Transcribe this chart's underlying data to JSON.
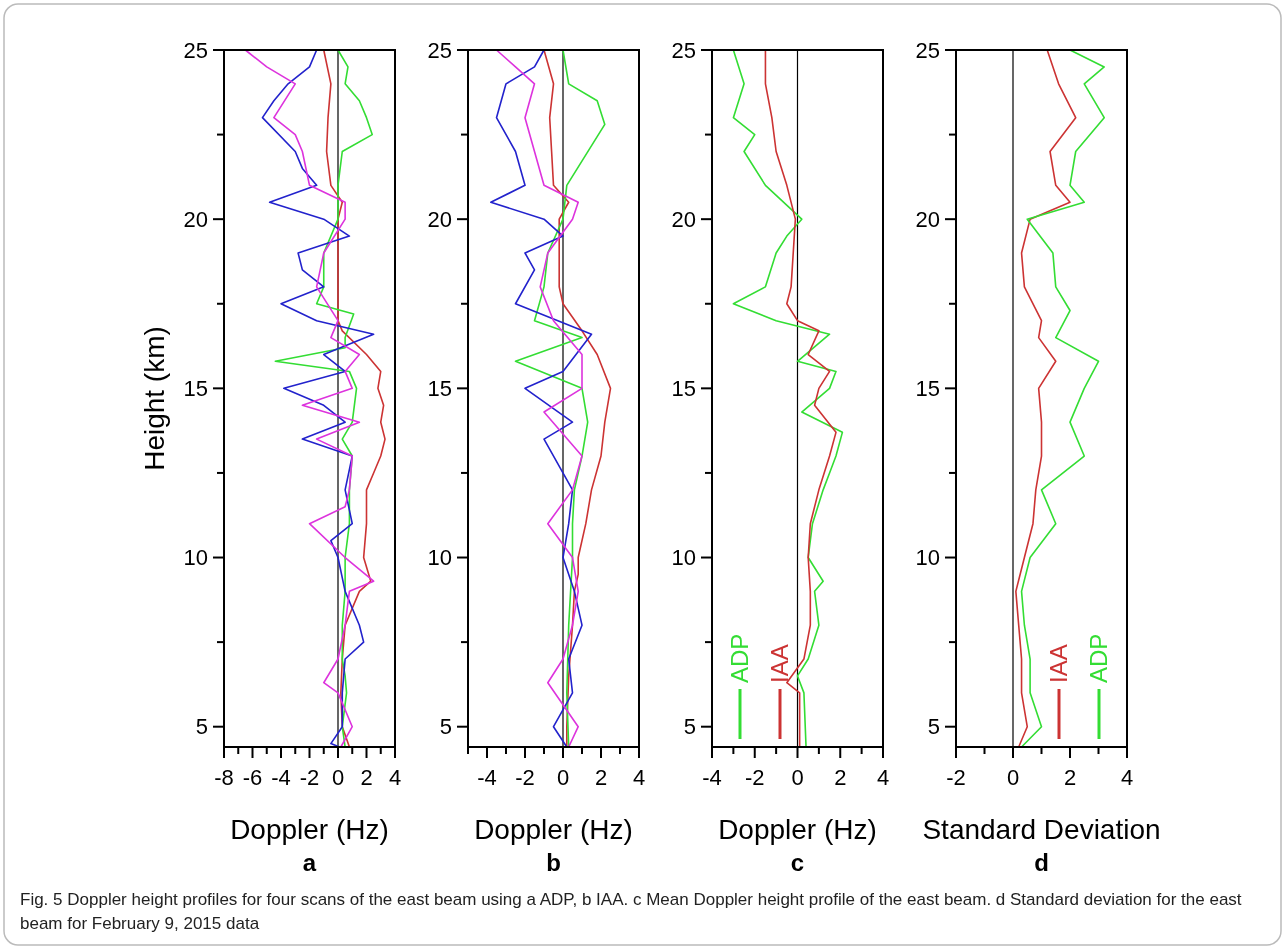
{
  "chart_data": [
    {
      "type": "line",
      "xlabel": "Doppler (Hz)",
      "ylabel": "Height (km)",
      "xlim": [
        -8,
        4
      ],
      "xticks": [
        -8,
        {
          "value": -7,
          "label": null
        },
        -6,
        {
          "value": -5,
          "label": null
        },
        -4,
        {
          "value": -3,
          "label": null
        },
        -2,
        {
          "value": -1,
          "label": null
        },
        0,
        {
          "value": 1,
          "label": null
        },
        2,
        {
          "value": 3,
          "label": null
        },
        4
      ],
      "ylim": [
        4.4,
        25
      ],
      "yticks": [
        5,
        {
          "value": 7.5,
          "label": null
        },
        10,
        {
          "value": 12.5,
          "label": null
        },
        15,
        {
          "value": 17.5,
          "label": null
        },
        20,
        {
          "value": 22.5,
          "label": null
        },
        25
      ],
      "grid": false,
      "legend": false,
      "ref_lines": [
        {
          "axis": "x",
          "value": 0,
          "color": "#000000"
        }
      ],
      "annotations": [
        "a",
        "Fig. 5  Doppler height profiles for four scans of the east beam using a ADP, b IAA. c Mean Doppler height profile of the east beam. d Standard deviation for the east beam for February 9, 2015 data"
      ],
      "series": [
        {
          "color": "#cc3333",
          "x": [
            0.8,
            0.3,
            0.2,
            0.3,
            0.5,
            1.5,
            2.3,
            1.8,
            2,
            2,
            2.5,
            3,
            3.3,
            3,
            3.2,
            2.8,
            3,
            2,
            0.3,
            0,
            0,
            0,
            0,
            0.3,
            -0.5,
            -0.8,
            -0.7,
            -0.5,
            -1
          ],
          "values": [
            4.4,
            5,
            6,
            7,
            8,
            9,
            9.3,
            10,
            11,
            12,
            12.5,
            13,
            13.5,
            14,
            14.5,
            15,
            15.5,
            16,
            16.7,
            17,
            18,
            19,
            20,
            20.5,
            21,
            22,
            23,
            24,
            25
          ]
        },
        {
          "color": "#33dd33",
          "x": [
            0.5,
            0.3,
            0.6,
            0.5,
            0.3,
            0.3,
            0.5,
            0.5,
            0.8,
            0.8,
            1,
            0.3,
            1,
            1.3,
            0.8,
            -4.4,
            0.5,
            0.5,
            1.1,
            -1.5,
            -1,
            -1,
            0,
            0,
            0.3,
            2.4,
            2,
            1.5,
            0.5,
            0.7,
            0
          ],
          "values": [
            4.4,
            5,
            6,
            6.5,
            7,
            8,
            9,
            10,
            11,
            12,
            13,
            13.5,
            14,
            15,
            15.5,
            15.8,
            16.2,
            16.5,
            17.2,
            17.5,
            18,
            19,
            20,
            21,
            22,
            22.5,
            23,
            23.5,
            24,
            24.5,
            25
          ]
        },
        {
          "color": "#2222cc",
          "x": [
            0.1,
            -0.5,
            0.3,
            0.3,
            0.5,
            1.8,
            1.5,
            0.5,
            0,
            -0.5,
            1,
            0.5,
            1,
            -2.5,
            0.5,
            -1,
            -3.8,
            0.5,
            -1,
            2.5,
            -1.5,
            -4,
            -1,
            -2.5,
            -2.8,
            0.8,
            -1,
            -4.8,
            -1.5,
            -2.5,
            -3,
            -5.3,
            -4.5,
            -3.5,
            -2,
            -1.5
          ],
          "values": [
            4.4,
            4.5,
            5,
            6,
            7,
            7.5,
            8,
            9,
            10,
            10.5,
            11,
            12,
            13,
            13.5,
            14,
            14.5,
            15,
            15.5,
            16,
            16.6,
            17,
            17.5,
            18,
            18.5,
            19,
            19.5,
            20,
            20.5,
            21,
            21.5,
            22,
            23,
            23.5,
            24,
            24.5,
            25
          ]
        },
        {
          "color": "#dd33dd",
          "x": [
            0.2,
            1,
            0,
            -1,
            0,
            0.5,
            0.8,
            2.5,
            0.5,
            -2,
            0.5,
            0.8,
            1,
            -1.5,
            1.5,
            -2.5,
            1,
            0.5,
            1.5,
            -0.5,
            0,
            -1.5,
            -1,
            0.5,
            0.5,
            -2,
            -2.5,
            -3,
            -4.5,
            -3,
            -5,
            -6.5
          ],
          "values": [
            4.4,
            5,
            6,
            6.3,
            7,
            8,
            9,
            9.3,
            10,
            11,
            11.5,
            12,
            13,
            13.5,
            14,
            14.5,
            15,
            15.5,
            16,
            16.5,
            17,
            18,
            19,
            20,
            20.5,
            21,
            22,
            22.5,
            23,
            24,
            24.5,
            25
          ]
        }
      ]
    },
    {
      "type": "line",
      "xlabel": "Doppler (Hz)",
      "xlim": [
        -5,
        4
      ],
      "xticks": [
        {
          "value": -5,
          "label": null
        },
        -4,
        {
          "value": -3,
          "label": null
        },
        -2,
        {
          "value": -1,
          "label": null
        },
        0,
        {
          "value": 1,
          "label": null
        },
        2,
        {
          "value": 3,
          "label": null
        },
        4
      ],
      "ylim": [
        4.4,
        25
      ],
      "yticks": [
        5,
        {
          "value": 7.5,
          "label": null
        },
        10,
        {
          "value": 12.5,
          "label": null
        },
        15,
        {
          "value": 17.5,
          "label": null
        },
        20,
        {
          "value": 22.5,
          "label": null
        },
        25
      ],
      "grid": false,
      "legend": false,
      "ref_lines": [
        {
          "axis": "x",
          "value": 0,
          "color": "#000000"
        }
      ],
      "annotations": [
        "b"
      ],
      "series": [
        {
          "color": "#cc3333",
          "x": [
            0.2,
            0.2,
            0.3,
            0.5,
            0.6,
            0.8,
            0.8,
            1.2,
            1.5,
            2,
            2.2,
            2.5,
            1.8,
            1,
            0,
            -0.2,
            -0.2,
            -0.2,
            0.3,
            -0.5,
            -0.6,
            -0.7,
            -0.5,
            -1
          ],
          "values": [
            4.4,
            5,
            6.5,
            8,
            9,
            9.5,
            10,
            11,
            12,
            13,
            14,
            15,
            16,
            16.7,
            17.5,
            18,
            19,
            20,
            20.5,
            21,
            22,
            23,
            24,
            25
          ]
        },
        {
          "color": "#33dd33",
          "x": [
            0.3,
            0.2,
            0.3,
            0.5,
            0.5,
            0.6,
            1,
            1.3,
            1,
            -2.5,
            1,
            -1.5,
            -1,
            -0.8,
            0,
            0.2,
            2.2,
            1.8,
            0.3,
            0
          ],
          "values": [
            4.4,
            6,
            8,
            10,
            11,
            12,
            13,
            14,
            15,
            15.8,
            16.5,
            17,
            18,
            19,
            20,
            21,
            22.8,
            23.5,
            24,
            25
          ]
        },
        {
          "color": "#2222cc",
          "x": [
            0.2,
            -0.5,
            0.5,
            0.3,
            1,
            0.6,
            0,
            0.3,
            0.5,
            -1,
            0.5,
            -2,
            0,
            1.5,
            -2.5,
            -1.5,
            -2,
            0,
            -1,
            -3.8,
            -2,
            -2.5,
            -3.5,
            -3,
            -1.5,
            -1
          ],
          "values": [
            4.4,
            5,
            6,
            7,
            8,
            9,
            10,
            11,
            12,
            13.5,
            14,
            15,
            15.5,
            16.6,
            17.5,
            18.5,
            19,
            19.5,
            20,
            20.5,
            21,
            22,
            23,
            24,
            24.5,
            25
          ]
        },
        {
          "color": "#dd33dd",
          "x": [
            0.3,
            0.8,
            -0.8,
            0,
            0.5,
            0.8,
            0.5,
            -0.8,
            0.5,
            1,
            -1,
            1,
            1,
            -0.5,
            -1.2,
            -0.8,
            0.5,
            0.8,
            -1,
            -1.5,
            -2,
            -1.5,
            -2.5,
            -3.5
          ],
          "values": [
            4.4,
            5,
            6.3,
            7,
            8,
            9,
            10,
            11,
            12,
            13,
            14.3,
            15,
            16,
            17,
            18,
            19,
            20,
            20.5,
            21,
            22,
            23,
            24,
            24.5,
            25
          ]
        }
      ]
    },
    {
      "type": "line",
      "xlabel": "Doppler (Hz)",
      "xlim": [
        -4,
        4
      ],
      "xticks": [
        -4,
        {
          "value": -3,
          "label": null
        },
        -2,
        {
          "value": -1,
          "label": null
        },
        0,
        {
          "value": 1,
          "label": null
        },
        2,
        {
          "value": 3,
          "label": null
        },
        4
      ],
      "ylim": [
        4.4,
        25
      ],
      "yticks": [
        5,
        {
          "value": 7.5,
          "label": null
        },
        10,
        {
          "value": 12.5,
          "label": null
        },
        15,
        {
          "value": 17.5,
          "label": null
        },
        20,
        {
          "value": 22.5,
          "label": null
        },
        25
      ],
      "grid": false,
      "legend": "bottom left",
      "ref_lines": [
        {
          "axis": "x",
          "value": 0,
          "color": "#000000"
        }
      ],
      "annotations": [
        "c"
      ],
      "series": [
        {
          "name": "ADP",
          "color": "#33dd33",
          "x": [
            0.4,
            0.3,
            0,
            0.5,
            1,
            0.8,
            1.2,
            0.5,
            0.7,
            1.2,
            1.5,
            1.8,
            2.1,
            0.2,
            1.5,
            1.8,
            0,
            1.5,
            -1,
            -3,
            -1.5,
            -1,
            -0.5,
            0.2,
            -1.5,
            -2.5,
            -2,
            -3,
            -2.5,
            -3
          ],
          "values": [
            4.4,
            6,
            6.5,
            7,
            8,
            9,
            9.3,
            10,
            11,
            12,
            12.5,
            13,
            13.7,
            14.3,
            15,
            15.5,
            15.8,
            16.6,
            17,
            17.5,
            18,
            19,
            19.5,
            20,
            21,
            22,
            22.5,
            23,
            24,
            25
          ]
        },
        {
          "name": "IAA",
          "color": "#cc3333",
          "x": [
            0.1,
            0.1,
            -0.5,
            0.3,
            0.6,
            0.6,
            0.5,
            0.6,
            1,
            1.5,
            1.8,
            0.8,
            1,
            1.5,
            0.5,
            1,
            0,
            -0.5,
            -0.3,
            -0.2,
            -0.1,
            -0.5,
            -1,
            -1.2,
            -1.5,
            -1.5
          ],
          "values": [
            4.4,
            6,
            6.3,
            7,
            8,
            9,
            10,
            11,
            12,
            13,
            13.7,
            14.5,
            15,
            15.5,
            16,
            16.7,
            17,
            17.5,
            18,
            19,
            20,
            21,
            22,
            23,
            24,
            25
          ]
        }
      ]
    },
    {
      "type": "line",
      "xlabel": "Standard Deviation",
      "xlim": [
        -2,
        4
      ],
      "xticks": [
        -2,
        {
          "value": -1,
          "label": null
        },
        0,
        {
          "value": 1,
          "label": null
        },
        2,
        {
          "value": 3,
          "label": null
        },
        4
      ],
      "ylim": [
        4.4,
        25
      ],
      "yticks": [
        5,
        {
          "value": 7.5,
          "label": null
        },
        10,
        {
          "value": 12.5,
          "label": null
        },
        15,
        {
          "value": 17.5,
          "label": null
        },
        20,
        {
          "value": 22.5,
          "label": null
        },
        25
      ],
      "grid": false,
      "legend": "bottom right",
      "ref_lines": [
        {
          "axis": "x",
          "value": 0,
          "color": "#000000"
        }
      ],
      "annotations": [
        "d"
      ],
      "series": [
        {
          "name": "IAA",
          "color": "#cc3333",
          "x": [
            0.2,
            0.5,
            0.3,
            0.3,
            0.2,
            0.1,
            0.4,
            0.7,
            0.8,
            1,
            1,
            0.9,
            1.5,
            0.9,
            1,
            0.4,
            0.3,
            0.6,
            2,
            1.5,
            1.3,
            2.2,
            1.6,
            1.2
          ],
          "values": [
            4.4,
            5,
            6,
            7,
            8,
            9,
            10,
            11,
            12,
            13,
            14,
            15,
            15.8,
            16.5,
            17,
            18,
            19,
            20,
            20.5,
            21,
            22,
            23,
            24,
            25
          ]
        },
        {
          "name": "ADP",
          "color": "#33dd33",
          "x": [
            0.3,
            1,
            0.6,
            0.6,
            0.4,
            0.3,
            0.6,
            1.5,
            1,
            2.5,
            2,
            2.5,
            3,
            1.5,
            2,
            1.5,
            1.4,
            0.5,
            2.5,
            2,
            2.2,
            3.2,
            2.5,
            3.2,
            2
          ],
          "values": [
            4.4,
            5,
            6,
            7,
            8,
            9,
            10,
            11,
            12,
            13,
            14,
            15,
            15.8,
            16.5,
            17.3,
            18,
            19,
            20,
            20.5,
            21,
            22,
            23,
            24,
            24.5,
            25
          ]
        }
      ]
    }
  ]
}
